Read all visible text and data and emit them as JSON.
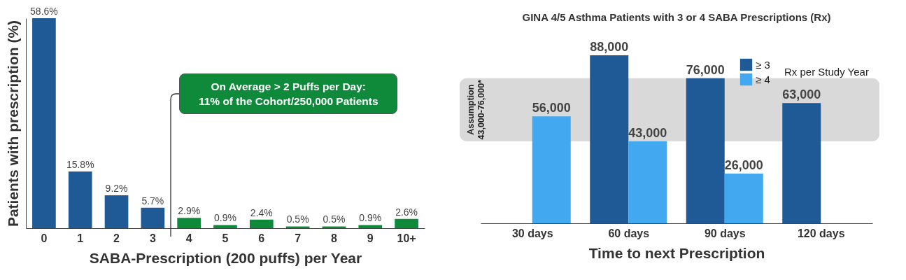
{
  "chart_data": [
    {
      "type": "bar",
      "categories": [
        "0",
        "1",
        "2",
        "3",
        "4",
        "5",
        "6",
        "7",
        "8",
        "9",
        "10+"
      ],
      "values": [
        58.6,
        15.8,
        9.2,
        5.7,
        2.9,
        0.9,
        2.4,
        0.5,
        0.5,
        0.9,
        2.6
      ],
      "colors": [
        "#1f5a96",
        "#1f5a96",
        "#1f5a96",
        "#1f5a96",
        "#0e8a3a",
        "#0e8a3a",
        "#0e8a3a",
        "#0e8a3a",
        "#0e8a3a",
        "#0e8a3a",
        "#0e8a3a"
      ],
      "value_labels": [
        "58.6%",
        "15.8%",
        "9.2%",
        "5.7%",
        "2.9%",
        "0.9%",
        "2.4%",
        "0.5%",
        "0.5%",
        "0.9%",
        "2.6%"
      ],
      "xlabel": "SABA-Prescription (200 puffs) per Year",
      "ylabel": "Patients with prescription (%)",
      "annotations": [
        "On Average > 2 Puffs per Day:\n11% of the Cohort/250,000 Patients"
      ],
      "tick_labels": "x"
    },
    {
      "type": "bar",
      "title": "GINA 4/5 Asthma Patients with 3 or 4 SABA Prescriptions (Rx)",
      "categories": [
        "30 days",
        "60 days",
        "90 days",
        "120 days"
      ],
      "series": [
        {
          "name": "≥ 3",
          "color": "#1f5a96",
          "values": [
            null,
            88000,
            76000,
            63000
          ],
          "value_labels": [
            null,
            "88,000",
            "76,000",
            "63,000"
          ]
        },
        {
          "name": "≥ 4",
          "color": "#42a8ef",
          "values": [
            56000,
            43000,
            26000,
            null
          ],
          "value_labels": [
            "56,000",
            "43,000",
            "26,000",
            null
          ]
        }
      ],
      "xlabel": "Time to next Prescription",
      "legend": "top right",
      "legend_title": "Rx per Study Year",
      "bands": [
        {
          "axis": "y",
          "from": 43000,
          "to": 76000,
          "label": "Assumption 43,000-76,000*",
          "color": "#d9d9d9"
        }
      ],
      "tick_labels": "x"
    }
  ]
}
